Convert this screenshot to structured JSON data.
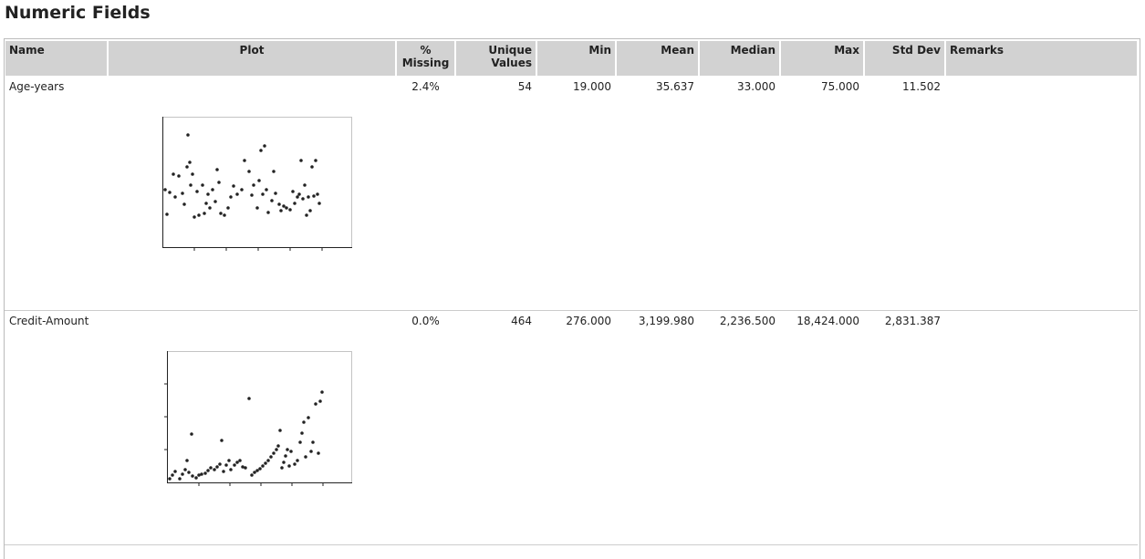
{
  "title": "Numeric Fields",
  "table": {
    "columns": [
      "Name",
      "Plot",
      "% Missing",
      "Unique Values",
      "Min",
      "Mean",
      "Median",
      "Max",
      "Std Dev",
      "Remarks"
    ],
    "rows": [
      [
        "Age-years",
        "2.4%",
        "54",
        "19.000",
        "35.637",
        "33.000",
        "75.000",
        "11.502"
      ],
      [
        "Credit-Amount",
        "0.0%",
        "464",
        "276.000",
        "3,199.980",
        "2,236.500",
        "18,424.000",
        "2,831.387"
      ]
    ]
  }
}
